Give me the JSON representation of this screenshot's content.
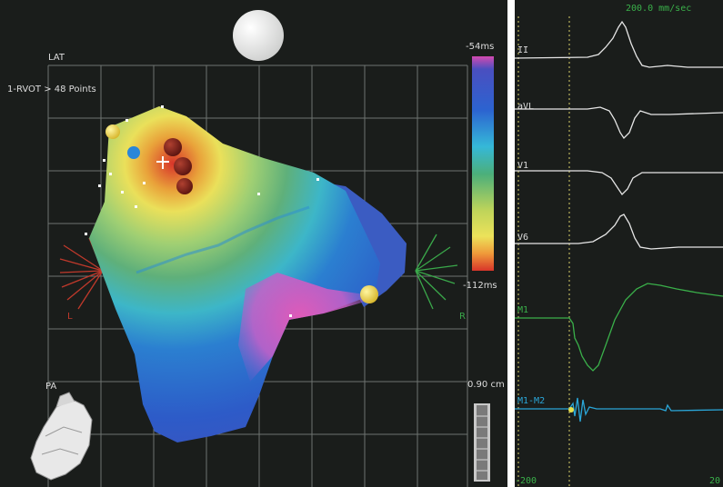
{
  "map": {
    "view_label": "LAT",
    "map_info": "1-RVOT > 48 Points",
    "view_bottom_label": "PA",
    "scale_top": "-54ms",
    "scale_bottom": "-112ms",
    "left_axis_label": "L",
    "right_axis_label": "R",
    "distance_label": "0.90 cm",
    "colors": {
      "background": "#1a1d1b",
      "grid": "#6e7370",
      "left_axis": "#c0392b",
      "right_axis": "#3aa84a"
    }
  },
  "ecg": {
    "speed_label": "200.0 mm/sec",
    "channels": [
      {
        "label": "II",
        "color": "#e6e6e6"
      },
      {
        "label": "aVL",
        "color": "#e6e6e6"
      },
      {
        "label": "V1",
        "color": "#e6e6e6"
      },
      {
        "label": "V6",
        "color": "#e6e6e6"
      },
      {
        "label": "M1",
        "color": "#3ab04a"
      },
      {
        "label": "M1-M2",
        "color": "#2aa6d8"
      }
    ],
    "axis_left": "-200",
    "axis_right": "20"
  }
}
